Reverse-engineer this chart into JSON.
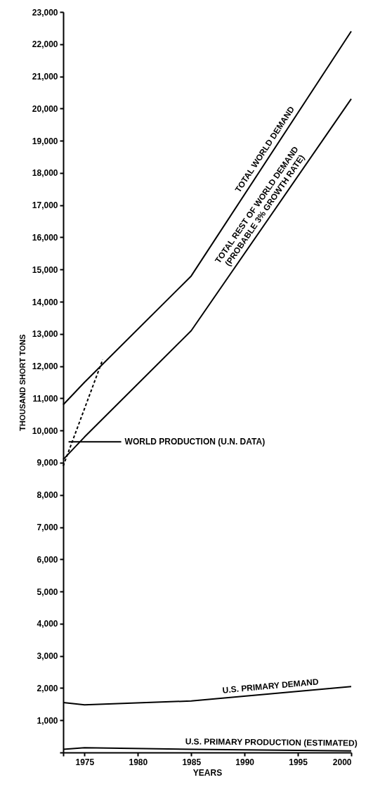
{
  "chart_data": {
    "type": "line",
    "xlabel": "YEARS",
    "ylabel": "THOUSAND SHORT TONS",
    "xlim": [
      1973,
      2000
    ],
    "ylim": [
      0,
      23000
    ],
    "xticks": [
      {
        "value": 1973,
        "label": null
      },
      1975,
      1980,
      1985,
      1990,
      1995,
      2000
    ],
    "yticks": [
      {
        "value": 0,
        "label": null
      },
      {
        "value": 1000,
        "label": "1,000"
      },
      {
        "value": 2000,
        "label": "2,000"
      },
      {
        "value": 3000,
        "label": "3,000"
      },
      {
        "value": 4000,
        "label": "4,000"
      },
      {
        "value": 5000,
        "label": "5,000"
      },
      {
        "value": 6000,
        "label": "6,000"
      },
      {
        "value": 7000,
        "label": "7,000"
      },
      {
        "value": 8000,
        "label": "8,000"
      },
      {
        "value": 9000,
        "label": "9,000"
      },
      {
        "value": 10000,
        "label": "10,000"
      },
      {
        "value": 11000,
        "label": "11,000"
      },
      {
        "value": 12000,
        "label": "12,000"
      },
      {
        "value": 13000,
        "label": "13,000"
      },
      {
        "value": 14000,
        "label": "14,000"
      },
      {
        "value": 15000,
        "label": "15,000"
      },
      {
        "value": 16000,
        "label": "16,000"
      },
      {
        "value": 17000,
        "label": "17,000"
      },
      {
        "value": 18000,
        "label": "18,000"
      },
      {
        "value": 19000,
        "label": "19,000"
      },
      {
        "value": 20000,
        "label": "20,000"
      },
      {
        "value": 21000,
        "label": "21,000"
      },
      {
        "value": 22000,
        "label": "22,000"
      },
      {
        "value": 23000,
        "label": "23,000"
      }
    ],
    "grid": false,
    "legend": false,
    "line_style": "solid",
    "series": [
      {
        "name": "TOTAL WORLD DEMAND",
        "color": "#000000",
        "x": [
          1973,
          1975,
          1985,
          2000
        ],
        "values": [
          10800,
          11500,
          14800,
          22400
        ]
      },
      {
        "name": "TOTAL REST OF WORLD DEMAND\n(PROBABLE 3% GROWTH RATE)",
        "color": "#000000",
        "x": [
          1973,
          1975,
          1985,
          2000
        ],
        "values": [
          9100,
          9800,
          13100,
          20300
        ]
      },
      {
        "color": "#000000",
        "line_style": "dashed",
        "x": [
          1973,
          1976.7
        ],
        "values": [
          8900,
          12200
        ]
      },
      {
        "name": "U.S. PRIMARY DEMAND",
        "color": "#000000",
        "x": [
          1973,
          1975,
          1985,
          2000
        ],
        "values": [
          1550,
          1480,
          1600,
          2050
        ]
      },
      {
        "name": "U.S. PRIMARY PRODUCTION (ESTIMATED)",
        "color": "#000000",
        "x": [
          1973,
          1975,
          1985,
          2000
        ],
        "values": [
          100,
          150,
          100,
          50
        ]
      }
    ],
    "annotations": [
      {
        "text": "WORLD PRODUCTION (U.N. DATA)",
        "x": 1973.5,
        "y": 9650
      }
    ]
  }
}
